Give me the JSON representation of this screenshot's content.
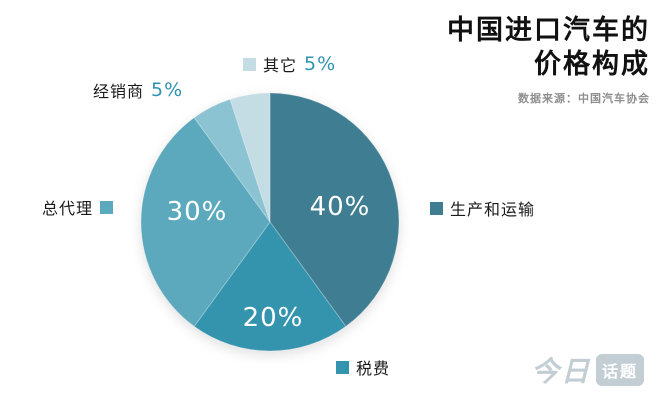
{
  "title": {
    "line1": "中国进口汽车的",
    "line2": "价格构成",
    "source": "数据来源：中国汽车协会"
  },
  "logo": {
    "part1": "今日",
    "part2": "话题"
  },
  "chart_data": {
    "type": "pie",
    "title": "中国进口汽车的价格构成",
    "source": "数据来源：中国汽车协会",
    "direction": "clockwise",
    "start_angle_deg": 0,
    "legend_position": "around",
    "slices": [
      {
        "label": "生产和运输",
        "value": 40,
        "pct_label": "40%",
        "color": "#3f7d93"
      },
      {
        "label": "税费",
        "value": 20,
        "pct_label": "20%",
        "color": "#3594ad"
      },
      {
        "label": "总代理",
        "value": 30,
        "pct_label": "30%",
        "color": "#5ca8bd"
      },
      {
        "label": "经销商",
        "value": 5,
        "pct_label": "5%",
        "color": "#8cc3d2"
      },
      {
        "label": "其它",
        "value": 5,
        "pct_label": "5%",
        "color": "#c4dde4"
      }
    ]
  }
}
